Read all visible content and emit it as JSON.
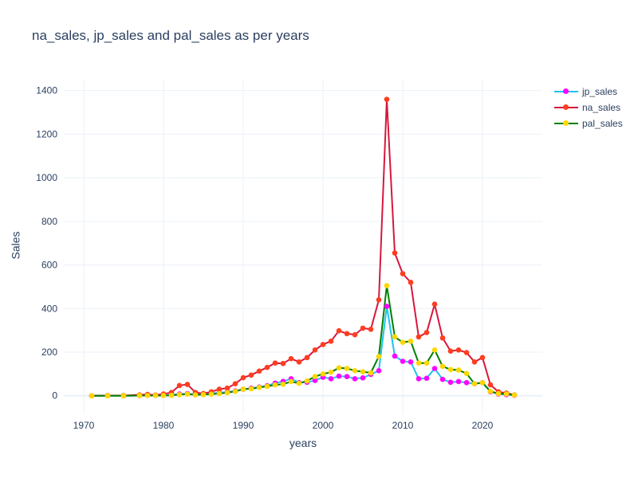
{
  "chart_data": {
    "type": "line",
    "title": "na_sales, jp_sales and pal_sales as per years",
    "xlabel": "years",
    "ylabel": "Sales",
    "xlim": [
      1967.5,
      2027.5
    ],
    "ylim": [
      -85,
      1450
    ],
    "x_ticks": [
      1970,
      1980,
      1990,
      2000,
      2010,
      2020
    ],
    "y_ticks": [
      0,
      200,
      400,
      600,
      800,
      1000,
      1200,
      1400
    ],
    "grid": true,
    "legend_position": "top-right",
    "x": [
      1971,
      1973,
      1975,
      1977,
      1978,
      1979,
      1980,
      1981,
      1982,
      1983,
      1984,
      1985,
      1986,
      1987,
      1988,
      1989,
      1990,
      1991,
      1992,
      1993,
      1994,
      1995,
      1996,
      1997,
      1998,
      1999,
      2000,
      2001,
      2002,
      2003,
      2004,
      2005,
      2006,
      2007,
      2008,
      2009,
      2010,
      2011,
      2012,
      2013,
      2014,
      2015,
      2016,
      2017,
      2018,
      2019,
      2020,
      2021,
      2022,
      2023,
      2024
    ],
    "series": [
      {
        "name": "jp_sales",
        "line_color": "#1cc4f0",
        "marker_color": "#ff00ff",
        "values": [
          0,
          0,
          0,
          1,
          2,
          2,
          2,
          4,
          8,
          10,
          6,
          8,
          10,
          14,
          17,
          22,
          30,
          35,
          40,
          46,
          58,
          66,
          78,
          60,
          62,
          70,
          85,
          78,
          90,
          88,
          78,
          82,
          98,
          115,
          410,
          182,
          158,
          155,
          78,
          80,
          125,
          75,
          62,
          65,
          60,
          55,
          60,
          18,
          8,
          5,
          2
        ]
      },
      {
        "name": "na_sales",
        "line_color": "#d6183c",
        "marker_color": "#ff3d1f",
        "values": [
          0,
          1,
          1,
          4,
          6,
          3,
          8,
          15,
          47,
          52,
          15,
          10,
          18,
          30,
          35,
          55,
          83,
          95,
          113,
          130,
          150,
          148,
          170,
          155,
          175,
          210,
          235,
          250,
          298,
          285,
          280,
          310,
          305,
          440,
          1360,
          655,
          560,
          520,
          270,
          290,
          420,
          265,
          205,
          210,
          198,
          155,
          175,
          50,
          18,
          12,
          4
        ]
      },
      {
        "name": "pal_sales",
        "line_color": "#008000",
        "marker_color": "#ffd700",
        "values": [
          0,
          0,
          0,
          1,
          1,
          1,
          1,
          2,
          5,
          8,
          4,
          5,
          7,
          10,
          14,
          20,
          30,
          32,
          38,
          43,
          50,
          53,
          65,
          57,
          68,
          88,
          100,
          108,
          128,
          125,
          115,
          110,
          105,
          180,
          505,
          270,
          245,
          250,
          150,
          150,
          210,
          135,
          120,
          118,
          102,
          55,
          60,
          20,
          10,
          8,
          3
        ]
      }
    ]
  }
}
